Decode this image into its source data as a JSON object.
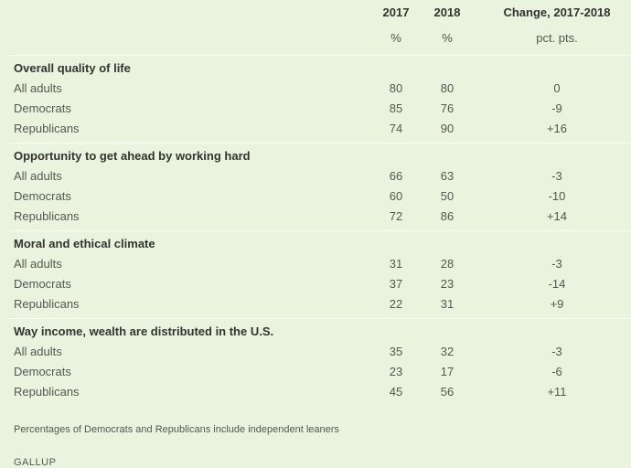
{
  "header": {
    "col_2017": "2017",
    "col_2018": "2018",
    "col_change": "Change, 2017-2018",
    "unit_2017": "%",
    "unit_2018": "%",
    "unit_change": "pct. pts."
  },
  "sections": [
    {
      "title": "Overall quality of life",
      "rows": [
        {
          "label": "All adults",
          "y2017": "80",
          "y2018": "80",
          "change": "0"
        },
        {
          "label": "Democrats",
          "y2017": "85",
          "y2018": "76",
          "change": "-9"
        },
        {
          "label": "Republicans",
          "y2017": "74",
          "y2018": "90",
          "change": "+16"
        }
      ]
    },
    {
      "title": "Opportunity to get ahead by working hard",
      "rows": [
        {
          "label": "All adults",
          "y2017": "66",
          "y2018": "63",
          "change": "-3"
        },
        {
          "label": "Democrats",
          "y2017": "60",
          "y2018": "50",
          "change": "-10"
        },
        {
          "label": "Republicans",
          "y2017": "72",
          "y2018": "86",
          "change": "+14"
        }
      ]
    },
    {
      "title": "Moral and ethical climate",
      "rows": [
        {
          "label": "All adults",
          "y2017": "31",
          "y2018": "28",
          "change": "-3"
        },
        {
          "label": "Democrats",
          "y2017": "37",
          "y2018": "23",
          "change": "-14"
        },
        {
          "label": "Republicans",
          "y2017": "22",
          "y2018": "31",
          "change": "+9"
        }
      ]
    },
    {
      "title": "Way income, wealth are distributed in the U.S.",
      "rows": [
        {
          "label": "All adults",
          "y2017": "35",
          "y2018": "32",
          "change": "-3"
        },
        {
          "label": "Democrats",
          "y2017": "23",
          "y2018": "17",
          "change": "-6"
        },
        {
          "label": "Republicans",
          "y2017": "45",
          "y2018": "56",
          "change": "+11"
        }
      ]
    }
  ],
  "footnote": "Percentages of Democrats and Republicans include independent leaners",
  "source": "GALLUP"
}
